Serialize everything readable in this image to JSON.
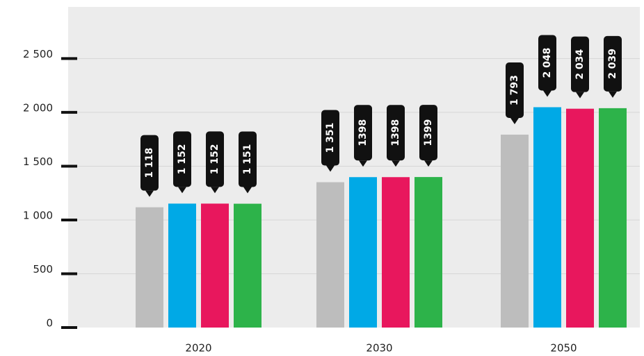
{
  "chart_data": {
    "type": "bar",
    "categories": [
      "2020",
      "2030",
      "2050"
    ],
    "series": [
      {
        "color": "#bdbdbd",
        "values": [
          1118,
          1351,
          1793
        ],
        "value_labels": [
          "1 118",
          "1 351",
          "1 793"
        ]
      },
      {
        "color": "#00a9e6",
        "values": [
          1152,
          1398,
          2048
        ],
        "value_labels": [
          "1 152",
          "1398",
          "2 048"
        ]
      },
      {
        "color": "#e8175d",
        "values": [
          1152,
          1398,
          2034
        ],
        "value_labels": [
          "1 152",
          "1398",
          "2 034"
        ]
      },
      {
        "color": "#2db34a",
        "values": [
          1151,
          1399,
          2039
        ],
        "value_labels": [
          "1 151",
          "1399",
          "2 039"
        ]
      }
    ],
    "ylim": [
      0,
      2980
    ],
    "yticks": [
      0,
      500,
      {
        "value": 1000,
        "label": "1 000"
      },
      {
        "value": 1500,
        "label": "1 500"
      },
      {
        "value": 2000,
        "label": "2 000"
      },
      {
        "value": 2500,
        "label": "2 500"
      }
    ],
    "grid": true
  }
}
